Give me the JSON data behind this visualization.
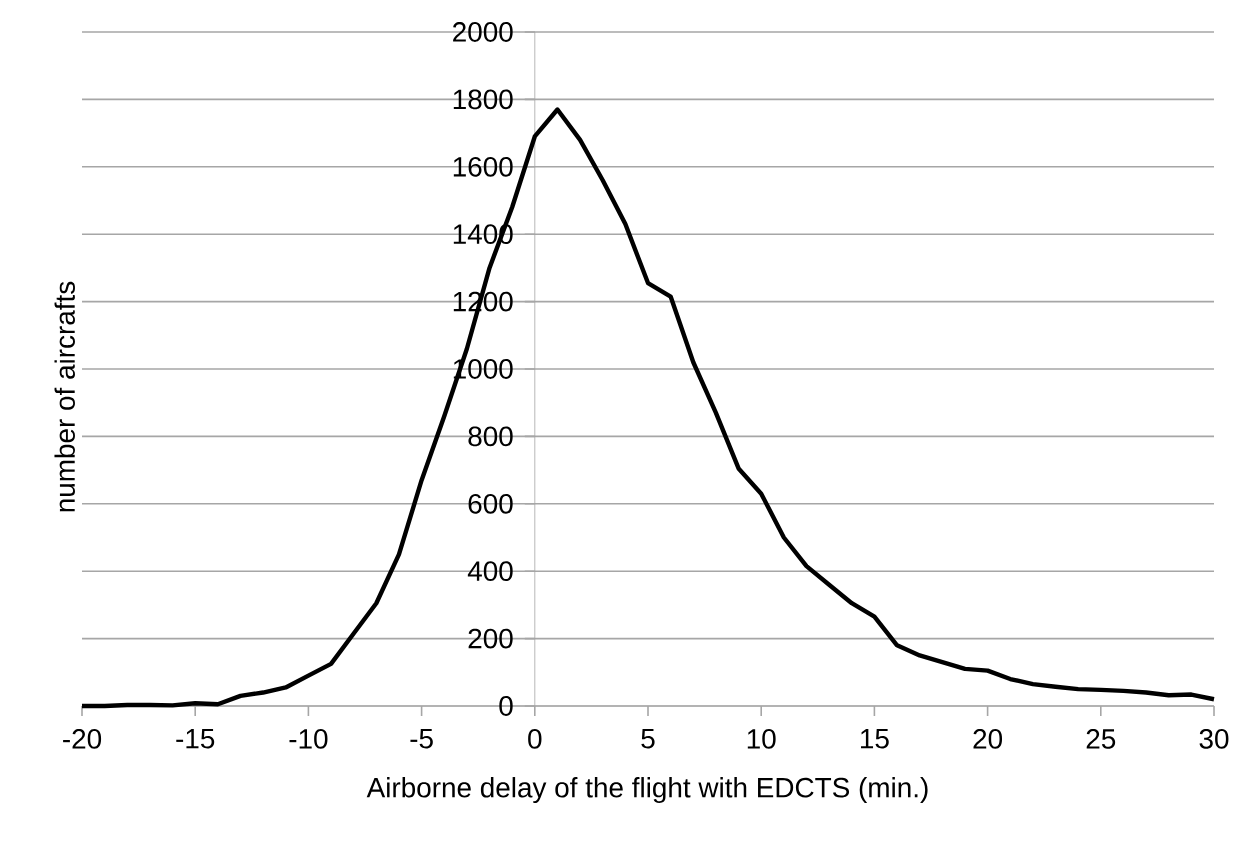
{
  "chart_data": {
    "type": "line",
    "xlabel": "Airborne delay of the flight with EDCTS (min.)",
    "ylabel": "number of aircrafts",
    "x": [
      -20,
      -19,
      -18,
      -17,
      -16,
      -15,
      -14,
      -13,
      -12,
      -11,
      -10,
      -9,
      -8,
      -7,
      -6,
      -5,
      -4,
      -3,
      -2,
      -1,
      0,
      1,
      2,
      3,
      4,
      5,
      6,
      7,
      8,
      9,
      10,
      11,
      12,
      13,
      14,
      15,
      16,
      17,
      18,
      19,
      20,
      21,
      22,
      23,
      24,
      25,
      26,
      27,
      28,
      29,
      30
    ],
    "series": [
      {
        "color": "#000000",
        "values": [
          0,
          0,
          3,
          3,
          2,
          8,
          5,
          30,
          40,
          55,
          90,
          125,
          215,
          305,
          450,
          670,
          860,
          1060,
          1300,
          1480,
          1690,
          1770,
          1680,
          1560,
          1430,
          1255,
          1215,
          1020,
          870,
          705,
          630,
          500,
          415,
          360,
          305,
          265,
          180,
          150,
          130,
          110,
          105,
          80,
          65,
          57,
          50,
          48,
          45,
          40,
          32,
          34,
          20
        ]
      }
    ],
    "xlim": [
      -20,
      30
    ],
    "ylim": [
      0,
      2000
    ],
    "xticks": [
      -20,
      -15,
      -10,
      -5,
      0,
      5,
      10,
      15,
      20,
      25,
      30
    ],
    "yticks": [
      0,
      200,
      400,
      600,
      800,
      1000,
      1200,
      1400,
      1600,
      1800,
      2000
    ],
    "grid": "y"
  }
}
